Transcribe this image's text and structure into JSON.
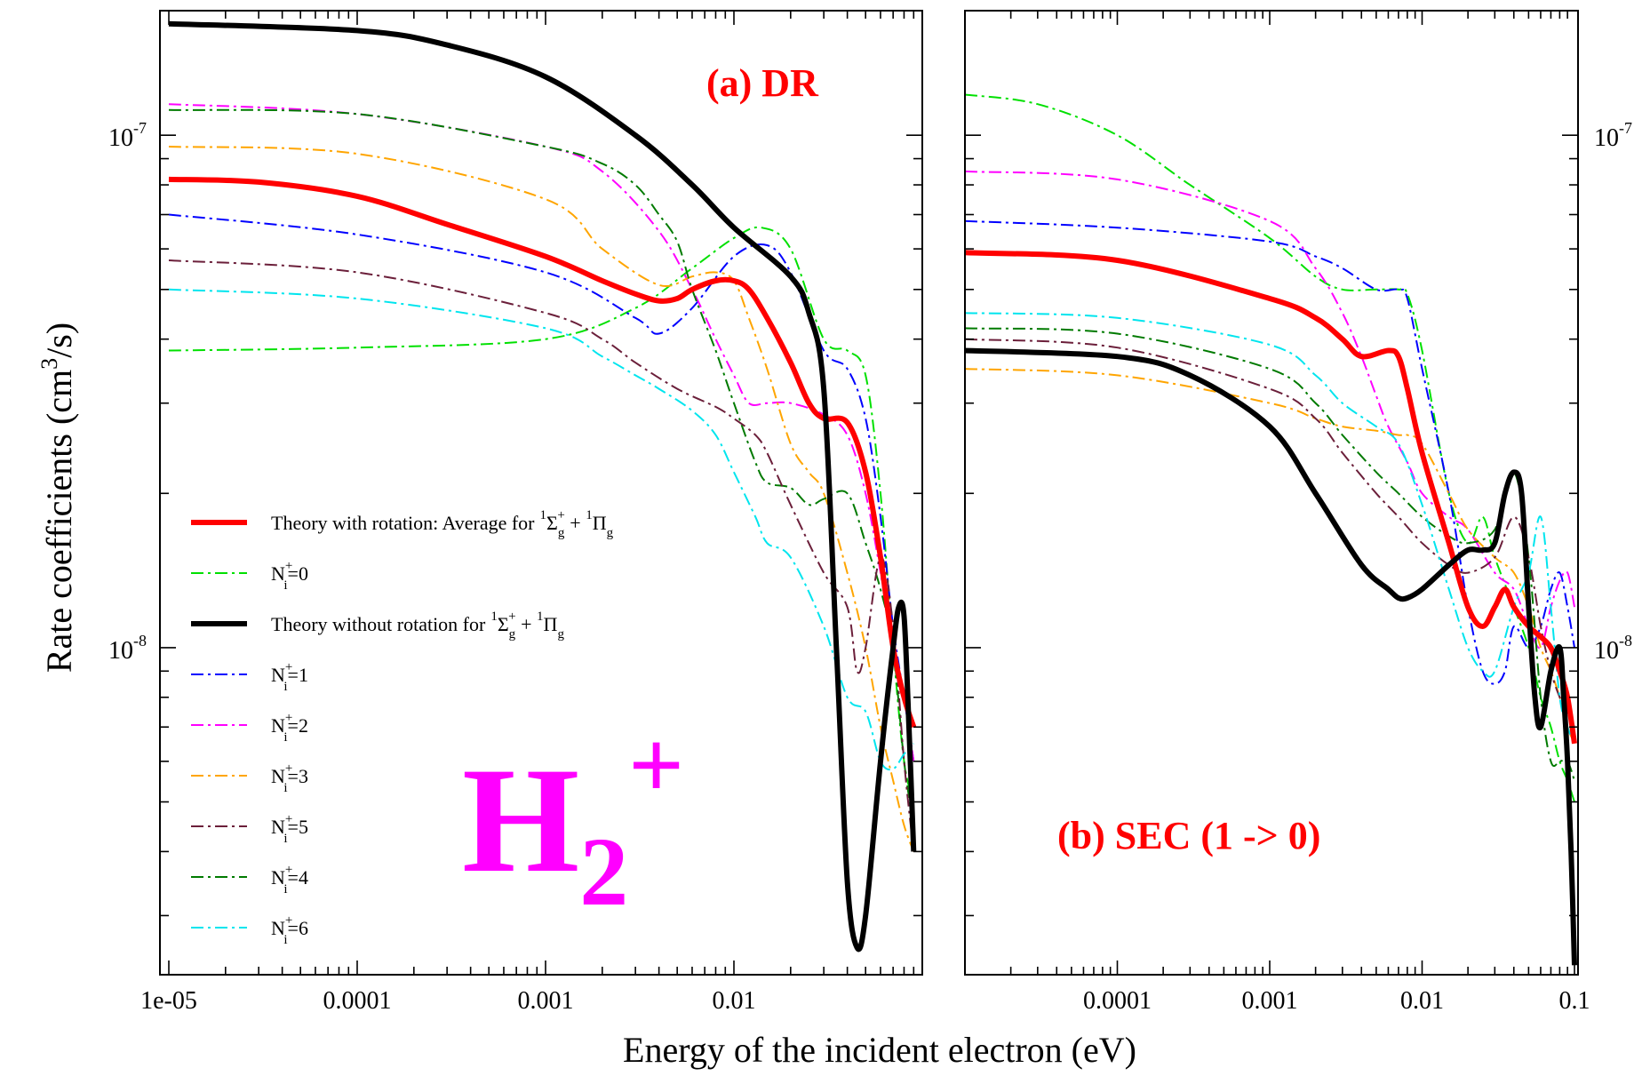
{
  "figure": {
    "xlabel": "Energy of the incident electron (eV)",
    "ylabel_pre": "Rate coefficients (cm",
    "ylabel_sup": "3",
    "ylabel_post": "/s)",
    "big_label": {
      "base": "H",
      "sub": "2",
      "sup": "+"
    }
  },
  "colors": {
    "avg": "#ff0000",
    "n0": "#00e000",
    "norot": "#000000",
    "n1": "#0000ff",
    "n2": "#ff00ff",
    "n3": "#ffa500",
    "n5": "#6b1f3a",
    "n4": "#007a00",
    "n6": "#00e5ee"
  },
  "legend": [
    {
      "key": "avg",
      "label": "Theory with rotation: Average for",
      "style": "solid",
      "width": 6
    },
    {
      "key": "n0",
      "label": "N",
      "sub": "i",
      "sup": "+",
      "tail": "=0",
      "style": "dashdot",
      "width": 2
    },
    {
      "key": "norot",
      "label": "Theory without rotation for",
      "style": "solid",
      "width": 6
    },
    {
      "key": "n1",
      "label": "N",
      "sub": "i",
      "sup": "+",
      "tail": "=1",
      "style": "dashdot",
      "width": 2
    },
    {
      "key": "n2",
      "label": "N",
      "sub": "i",
      "sup": "+",
      "tail": "=2",
      "style": "dashdot",
      "width": 2
    },
    {
      "key": "n3",
      "label": "N",
      "sub": "i",
      "sup": "+",
      "tail": "=3",
      "style": "dashdot",
      "width": 2
    },
    {
      "key": "n5",
      "label": "N",
      "sub": "i",
      "sup": "+",
      "tail": "=5",
      "style": "dashdot",
      "width": 2
    },
    {
      "key": "n4",
      "label": "N",
      "sub": "i",
      "sup": "+",
      "tail": "=4",
      "style": "dashdot",
      "width": 2
    },
    {
      "key": "n6",
      "label": "N",
      "sub": "i",
      "sup": "+",
      "tail": "=6",
      "style": "dashdot",
      "width": 2
    }
  ],
  "legend_symmetry_text": {
    "s1": "1",
    "sigma": "Σ",
    "g1": "g",
    "p1": "+",
    "plus": " + ",
    "s2": "1",
    "pi": "Π",
    "g2": "g"
  },
  "chart_data": [
    {
      "type": "line",
      "title": "(a) DR",
      "xscale": "log",
      "yscale": "log",
      "xlim": [
        1e-05,
        0.1
      ],
      "ylim": [
        2.3e-09,
        1.75e-07
      ],
      "xticks": [
        {
          "v": 1e-05,
          "label": "1e-05"
        },
        {
          "v": 0.0001,
          "label": "0.0001"
        },
        {
          "v": 0.001,
          "label": "0.001"
        },
        {
          "v": 0.01,
          "label": "0.01"
        }
      ],
      "yticks": [
        {
          "v": 1e-07,
          "base": "10",
          "exp": "-7"
        },
        {
          "v": 1e-08,
          "base": "10",
          "exp": "-8"
        }
      ],
      "ytick_side": "left",
      "series": [
        {
          "key": "avg",
          "x": [
            1e-05,
            3e-05,
            0.0001,
            0.0003,
            0.001,
            0.002,
            0.003,
            0.004,
            0.005,
            0.006,
            0.008,
            0.01,
            0.012,
            0.015,
            0.02,
            0.025,
            0.03,
            0.04,
            0.05,
            0.06,
            0.07,
            0.08,
            0.09
          ],
          "y": [
            8.2e-08,
            8.1e-08,
            7.6e-08,
            6.7e-08,
            5.8e-08,
            5.2e-08,
            4.9e-08,
            4.75e-08,
            4.8e-08,
            5e-08,
            5.2e-08,
            5.2e-08,
            5e-08,
            4.4e-08,
            3.6e-08,
            3e-08,
            2.8e-08,
            2.75e-08,
            2.2e-08,
            1.5e-08,
            1e-08,
            8e-09,
            7e-09
          ]
        },
        {
          "key": "n0",
          "x": [
            1e-05,
            0.0001,
            0.001,
            0.003,
            0.006,
            0.01,
            0.014,
            0.02,
            0.03,
            0.04,
            0.05,
            0.06,
            0.07,
            0.08,
            0.09
          ],
          "y": [
            3.8e-08,
            3.85e-08,
            4e-08,
            4.6e-08,
            5.5e-08,
            6.3e-08,
            6.6e-08,
            6e-08,
            4e-08,
            3.8e-08,
            3.4e-08,
            2e-08,
            1e-08,
            6e-09,
            5e-09
          ]
        },
        {
          "key": "norot",
          "x": [
            1e-05,
            0.0001,
            0.0003,
            0.001,
            0.003,
            0.006,
            0.01,
            0.02,
            0.025,
            0.03,
            0.035,
            0.04,
            0.045,
            0.05,
            0.06,
            0.07,
            0.075,
            0.08,
            0.085,
            0.09
          ],
          "y": [
            1.65e-07,
            1.6e-07,
            1.5e-07,
            1.3e-07,
            1e-07,
            8e-08,
            6.6e-08,
            5.3e-08,
            4.5e-08,
            3.2e-08,
            1e-08,
            3.5e-09,
            2.6e-09,
            3e-09,
            6e-09,
            1e-08,
            1.2e-08,
            1.15e-08,
            7e-09,
            4e-09
          ]
        },
        {
          "key": "n1",
          "x": [
            1e-05,
            0.0001,
            0.001,
            0.003,
            0.004,
            0.006,
            0.01,
            0.015,
            0.02,
            0.03,
            0.04,
            0.05,
            0.06,
            0.07,
            0.08,
            0.09
          ],
          "y": [
            7e-08,
            6.4e-08,
            5.4e-08,
            4.4e-08,
            4.1e-08,
            4.6e-08,
            5.8e-08,
            6.1e-08,
            5.4e-08,
            3.8e-08,
            3.5e-08,
            2.8e-08,
            1.8e-08,
            1.1e-08,
            8e-09,
            6e-09
          ]
        },
        {
          "key": "n2",
          "x": [
            1e-05,
            0.0001,
            0.001,
            0.002,
            0.004,
            0.006,
            0.008,
            0.01,
            0.012,
            0.015,
            0.02,
            0.03,
            0.04,
            0.05,
            0.06,
            0.07,
            0.08,
            0.09
          ],
          "y": [
            1.15e-07,
            1.1e-07,
            9.5e-08,
            8.5e-08,
            6.5e-08,
            5e-08,
            4e-08,
            3.4e-08,
            3e-08,
            3e-08,
            3e-08,
            2.85e-08,
            2.6e-08,
            2e-08,
            1.4e-08,
            1e-08,
            8e-09,
            6e-09
          ]
        },
        {
          "key": "n3",
          "x": [
            1e-05,
            0.0001,
            0.001,
            0.002,
            0.004,
            0.006,
            0.008,
            0.01,
            0.012,
            0.015,
            0.02,
            0.025,
            0.03,
            0.04,
            0.05,
            0.06,
            0.07,
            0.08,
            0.09
          ],
          "y": [
            9.5e-08,
            9.2e-08,
            7.5e-08,
            6e-08,
            5.1e-08,
            5.3e-08,
            5.4e-08,
            5.2e-08,
            4.4e-08,
            3.5e-08,
            2.5e-08,
            2.2e-08,
            2e-08,
            1.4e-08,
            1e-08,
            7e-09,
            5.5e-09,
            4.5e-09,
            4e-09
          ]
        },
        {
          "key": "n5",
          "x": [
            1e-05,
            0.0001,
            0.001,
            0.002,
            0.003,
            0.005,
            0.008,
            0.01,
            0.013,
            0.015,
            0.02,
            0.03,
            0.04,
            0.045,
            0.05,
            0.06,
            0.07,
            0.08,
            0.09
          ],
          "y": [
            5.7e-08,
            5.4e-08,
            4.5e-08,
            4e-08,
            3.6e-08,
            3.2e-08,
            2.95e-08,
            2.8e-08,
            2.6e-08,
            2.4e-08,
            1.9e-08,
            1.4e-08,
            1.2e-08,
            9e-09,
            1e-08,
            1.5e-08,
            1.1e-08,
            6e-09,
            4e-09
          ]
        },
        {
          "key": "n4",
          "x": [
            1e-05,
            0.0001,
            0.001,
            0.002,
            0.003,
            0.004,
            0.005,
            0.006,
            0.008,
            0.01,
            0.013,
            0.015,
            0.02,
            0.025,
            0.03,
            0.04,
            0.05,
            0.06,
            0.07,
            0.08,
            0.09
          ],
          "y": [
            1.12e-07,
            1.1e-07,
            9.5e-08,
            8.8e-08,
            8e-08,
            7e-08,
            6.2e-08,
            5e-08,
            3.8e-08,
            3e-08,
            2.3e-08,
            2.1e-08,
            2.05e-08,
            1.9e-08,
            1.95e-08,
            2e-08,
            1.6e-08,
            1.3e-08,
            1e-08,
            6e-09,
            4.5e-09
          ]
        },
        {
          "key": "n6",
          "x": [
            1e-05,
            0.0001,
            0.001,
            0.002,
            0.003,
            0.004,
            0.006,
            0.008,
            0.01,
            0.013,
            0.015,
            0.02,
            0.03,
            0.04,
            0.05,
            0.06,
            0.07,
            0.08,
            0.09
          ],
          "y": [
            5e-08,
            4.8e-08,
            4.2e-08,
            3.7e-08,
            3.4e-08,
            3.2e-08,
            2.9e-08,
            2.6e-08,
            2.2e-08,
            1.8e-08,
            1.6e-08,
            1.5e-08,
            1.1e-08,
            8e-09,
            7.5e-09,
            6e-09,
            5.8e-09,
            6.2e-09,
            6.5e-09
          ]
        }
      ]
    },
    {
      "type": "line",
      "title": "(b) SEC (1 -> 0)",
      "xscale": "log",
      "yscale": "log",
      "xlim": [
        1e-05,
        0.1
      ],
      "ylim": [
        2.3e-09,
        1.75e-07
      ],
      "xticks": [
        {
          "v": 0.0001,
          "label": "0.0001"
        },
        {
          "v": 0.001,
          "label": "0.001"
        },
        {
          "v": 0.01,
          "label": "0.01"
        },
        {
          "v": 0.1,
          "label": "0.1"
        }
      ],
      "yticks": [
        {
          "v": 1e-07,
          "base": "10",
          "exp": "-7"
        },
        {
          "v": 1e-08,
          "base": "10",
          "exp": "-8"
        }
      ],
      "ytick_side": "right",
      "series": [
        {
          "key": "avg",
          "x": [
            1e-05,
            0.0001,
            0.001,
            0.002,
            0.003,
            0.004,
            0.006,
            0.007,
            0.008,
            0.01,
            0.015,
            0.02,
            0.025,
            0.03,
            0.035,
            0.04,
            0.05,
            0.06,
            0.07,
            0.08,
            0.09,
            0.1
          ],
          "y": [
            5.9e-08,
            5.7e-08,
            4.8e-08,
            4.4e-08,
            4e-08,
            3.7e-08,
            3.8e-08,
            3.7e-08,
            3.2e-08,
            2.4e-08,
            1.6e-08,
            1.2e-08,
            1.1e-08,
            1.2e-08,
            1.3e-08,
            1.2e-08,
            1.1e-08,
            1.05e-08,
            1e-08,
            9e-09,
            8e-09,
            6.5e-09
          ]
        },
        {
          "key": "n0",
          "x": [
            1e-05,
            3e-05,
            0.0001,
            0.0003,
            0.001,
            0.002,
            0.003,
            0.005,
            0.007,
            0.008,
            0.01,
            0.015,
            0.02,
            0.025,
            0.03,
            0.04,
            0.05,
            0.06,
            0.07,
            0.08,
            0.09,
            0.1
          ],
          "y": [
            1.2e-07,
            1.15e-07,
            1e-07,
            8e-08,
            6.3e-08,
            5.3e-08,
            5e-08,
            5e-08,
            5e-08,
            4.9e-08,
            3.8e-08,
            2e-08,
            1.6e-08,
            1.8e-08,
            1.5e-08,
            1.2e-08,
            1e-08,
            8e-09,
            7e-09,
            6e-09,
            5.5e-09,
            5e-09
          ]
        },
        {
          "key": "norot",
          "x": [
            1e-05,
            0.0001,
            0.0003,
            0.001,
            0.002,
            0.004,
            0.006,
            0.007,
            0.008,
            0.01,
            0.015,
            0.02,
            0.025,
            0.03,
            0.035,
            0.04,
            0.045,
            0.05,
            0.055,
            0.06,
            0.07,
            0.08,
            0.085,
            0.09,
            0.095,
            0.1
          ],
          "y": [
            3.8e-08,
            3.7e-08,
            3.4e-08,
            2.7e-08,
            2e-08,
            1.45e-08,
            1.3e-08,
            1.25e-08,
            1.25e-08,
            1.3e-08,
            1.45e-08,
            1.55e-08,
            1.55e-08,
            1.6e-08,
            2e-08,
            2.2e-08,
            2e-08,
            1.2e-08,
            8e-09,
            7e-09,
            9e-09,
            1e-08,
            8e-09,
            6e-09,
            4e-09,
            2.4e-09
          ]
        },
        {
          "key": "n1",
          "x": [
            1e-05,
            0.0001,
            0.001,
            0.002,
            0.003,
            0.005,
            0.007,
            0.008,
            0.01,
            0.015,
            0.02,
            0.025,
            0.03,
            0.035,
            0.04,
            0.05,
            0.06,
            0.07,
            0.08,
            0.09,
            0.1
          ],
          "y": [
            6.8e-08,
            6.6e-08,
            6.2e-08,
            5.8e-08,
            5.5e-08,
            5e-08,
            5e-08,
            4.8e-08,
            3.5e-08,
            2e-08,
            1.2e-08,
            9e-09,
            8.5e-09,
            9e-09,
            1.1e-08,
            1e-08,
            1.1e-08,
            1.3e-08,
            1.4e-08,
            1.2e-08,
            1e-08
          ]
        },
        {
          "key": "n2",
          "x": [
            1e-05,
            0.0001,
            0.001,
            0.002,
            0.003,
            0.004,
            0.005,
            0.006,
            0.008,
            0.01,
            0.015,
            0.02,
            0.03,
            0.04,
            0.05,
            0.06,
            0.07,
            0.08,
            0.09,
            0.1
          ],
          "y": [
            8.5e-08,
            8.2e-08,
            6.8e-08,
            5.5e-08,
            4.5e-08,
            3.7e-08,
            3.1e-08,
            2.7e-08,
            2.3e-08,
            2e-08,
            1.8e-08,
            1.7e-08,
            1.4e-08,
            1.3e-08,
            1.1e-08,
            1e-08,
            1.2e-08,
            1.35e-08,
            1.4e-08,
            1.2e-08
          ]
        },
        {
          "key": "n3",
          "x": [
            1e-05,
            0.0001,
            0.001,
            0.002,
            0.003,
            0.005,
            0.007,
            0.008,
            0.01,
            0.015,
            0.02,
            0.03,
            0.04,
            0.05,
            0.06,
            0.07,
            0.08,
            0.09,
            0.1
          ],
          "y": [
            3.5e-08,
            3.4e-08,
            3e-08,
            2.8e-08,
            2.7e-08,
            2.65e-08,
            2.6e-08,
            2.6e-08,
            2.5e-08,
            2e-08,
            1.7e-08,
            1.5e-08,
            1.4e-08,
            1.2e-08,
            1e-08,
            9e-09,
            8e-09,
            7e-09,
            6.5e-09
          ]
        },
        {
          "key": "n5",
          "x": [
            1e-05,
            0.0001,
            0.001,
            0.002,
            0.003,
            0.005,
            0.007,
            0.01,
            0.015,
            0.02,
            0.03,
            0.04,
            0.05,
            0.06,
            0.07,
            0.08,
            0.09,
            0.1
          ],
          "y": [
            4e-08,
            3.85e-08,
            3.2e-08,
            2.8e-08,
            2.4e-08,
            2e-08,
            1.8e-08,
            1.6e-08,
            1.45e-08,
            1.4e-08,
            1.5e-08,
            1.8e-08,
            1.5e-08,
            1.1e-08,
            9e-09,
            8e-09,
            7.5e-09,
            7e-09
          ]
        },
        {
          "key": "n4",
          "x": [
            1e-05,
            0.0001,
            0.001,
            0.002,
            0.003,
            0.005,
            0.007,
            0.01,
            0.015,
            0.02,
            0.03,
            0.04,
            0.05,
            0.06,
            0.07,
            0.08,
            0.09,
            0.1
          ],
          "y": [
            4.2e-08,
            4.1e-08,
            3.5e-08,
            3e-08,
            2.6e-08,
            2.2e-08,
            2e-08,
            1.8e-08,
            1.65e-08,
            1.6e-08,
            1.7e-08,
            2.2e-08,
            1.5e-08,
            8e-09,
            6e-09,
            6e-09,
            6e-09,
            5.5e-09
          ]
        },
        {
          "key": "n6",
          "x": [
            1e-05,
            0.0001,
            0.001,
            0.002,
            0.003,
            0.005,
            0.007,
            0.01,
            0.015,
            0.02,
            0.025,
            0.03,
            0.04,
            0.05,
            0.06,
            0.07,
            0.08,
            0.09,
            0.1
          ],
          "y": [
            4.5e-08,
            4.4e-08,
            3.9e-08,
            3.4e-08,
            3e-08,
            2.7e-08,
            2.5e-08,
            1.9e-08,
            1.3e-08,
            1e-08,
            9e-09,
            9e-09,
            1.2e-08,
            1.4e-08,
            1.8e-08,
            1.2e-08,
            8e-09,
            7e-09,
            6.5e-09
          ]
        }
      ]
    }
  ]
}
